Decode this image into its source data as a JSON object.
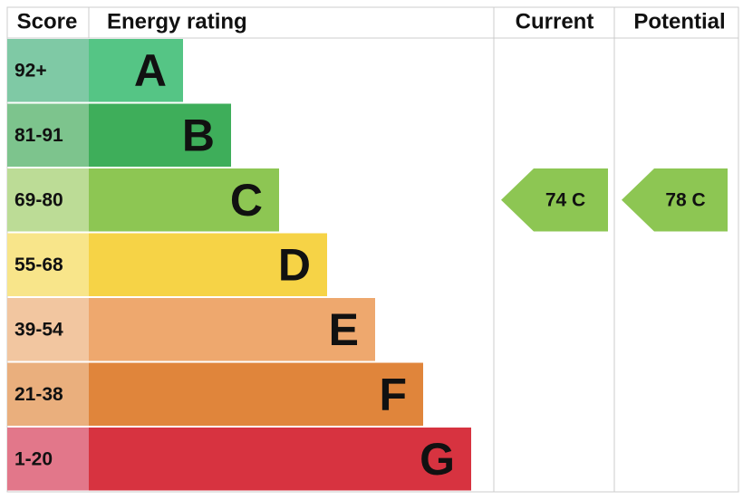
{
  "header": {
    "score": "Score",
    "rating": "Energy rating",
    "current": "Current",
    "potential": "Potential"
  },
  "bands": [
    {
      "score": "92+",
      "letter": "A",
      "color": "#55c585",
      "score_color": "#7fc9a5"
    },
    {
      "score": "81-91",
      "letter": "B",
      "color": "#3eae5a",
      "score_color": "#7dc48d"
    },
    {
      "score": "69-80",
      "letter": "C",
      "color": "#8dc653",
      "score_color": "#bcdc96"
    },
    {
      "score": "55-68",
      "letter": "D",
      "color": "#f6d346",
      "score_color": "#f8e58a"
    },
    {
      "score": "39-54",
      "letter": "E",
      "color": "#eea86e",
      "score_color": "#f2c6a0"
    },
    {
      "score": "21-38",
      "letter": "F",
      "color": "#e0853b",
      "score_color": "#eaaf7d"
    },
    {
      "score": "1-20",
      "letter": "G",
      "color": "#d73340",
      "score_color": "#e2778a"
    }
  ],
  "current": {
    "text": "74 C",
    "band": 2,
    "color": "#8dc653"
  },
  "potential": {
    "text": "78 C",
    "band": 2,
    "color": "#8dc653"
  }
}
